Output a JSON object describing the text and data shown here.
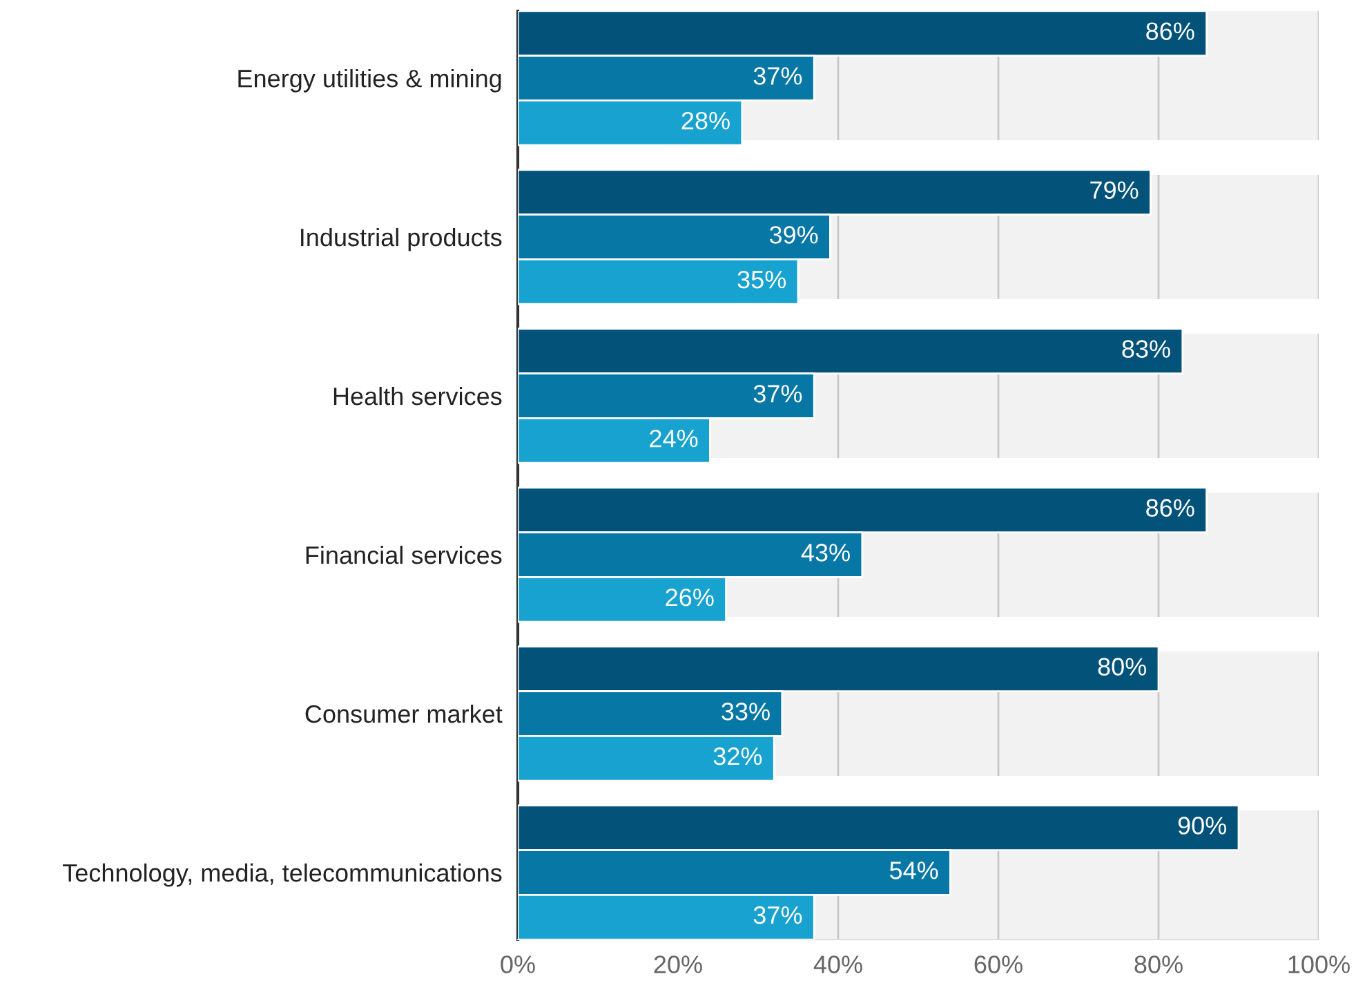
{
  "chart_data": {
    "type": "bar",
    "orientation": "horizontal",
    "categories": [
      "Energy utilities & mining",
      "Industrial products",
      "Health services",
      "Financial services",
      "Consumer market",
      "Technology, media, telecommunications"
    ],
    "series": [
      {
        "color": "#02527a",
        "values": [
          86,
          79,
          83,
          86,
          80,
          90
        ],
        "value_labels": [
          "86%",
          "79%",
          "83%",
          "86%",
          "80%",
          "90%"
        ]
      },
      {
        "color": "#0777a6",
        "values": [
          37,
          39,
          37,
          43,
          33,
          54
        ],
        "value_labels": [
          "37%",
          "39%",
          "37%",
          "43%",
          "33%",
          "54%"
        ]
      },
      {
        "color": "#18a2cf",
        "values": [
          28,
          35,
          24,
          26,
          32,
          37
        ],
        "value_labels": [
          "28%",
          "35%",
          "24%",
          "26%",
          "32%",
          "37%"
        ]
      }
    ],
    "xlim": [
      0,
      100
    ],
    "xticks": [
      {
        "value": 0,
        "label": "0%"
      },
      {
        "value": 20,
        "label": "20%"
      },
      {
        "value": 40,
        "label": "40%"
      },
      {
        "value": 60,
        "label": "60%"
      },
      {
        "value": 80,
        "label": "80%"
      },
      {
        "value": 100,
        "label": "100%"
      }
    ],
    "grid": "x",
    "legend": false
  }
}
